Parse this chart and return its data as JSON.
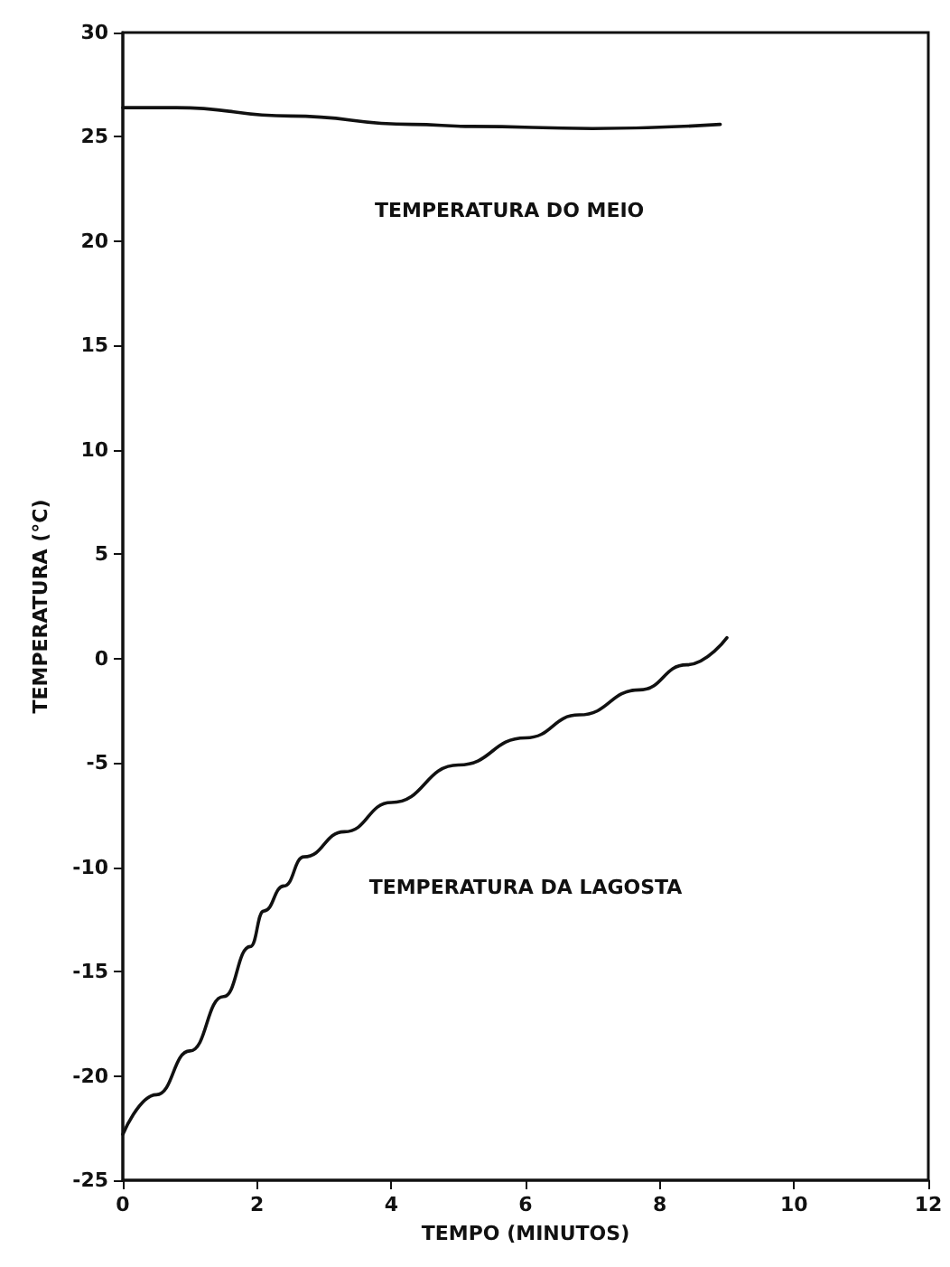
{
  "chart_data": {
    "type": "line",
    "xlabel": "TEMPO (MINUTOS)",
    "ylabel": "TEMPERATURA (°C)",
    "xlim": [
      0,
      12
    ],
    "xticks": [
      0,
      2,
      4,
      6,
      8,
      10,
      12
    ],
    "ylim": [
      -25,
      30
    ],
    "yticks": [
      -25,
      -20,
      -15,
      -10,
      -5,
      0,
      5,
      10,
      15,
      20,
      25,
      30
    ],
    "grid": false,
    "marker": "none",
    "line_style": "solid",
    "series": [
      {
        "color": "#111111",
        "x": [
          0,
          0.8,
          2.5,
          4.3,
          5.2,
          7,
          8.9
        ],
        "values": [
          26.4,
          26.4,
          26.0,
          25.6,
          25.5,
          25.4,
          25.6
        ]
      },
      {
        "color": "#111111",
        "x": [
          0,
          0.5,
          1,
          1.5,
          1.9,
          2.1,
          2.4,
          2.7,
          3.3,
          4,
          5,
          6,
          6.8,
          7.7,
          8.4,
          9
        ],
        "values": [
          -22.8,
          -20.9,
          -18.8,
          -16.2,
          -13.8,
          -12.1,
          -10.9,
          -9.5,
          -8.3,
          -6.9,
          -5.1,
          -3.8,
          -2.7,
          -1.5,
          -0.3,
          1
        ]
      }
    ],
    "annotations": [
      "TEMPERATURA DO MEIO",
      "TEMPERATURA DA LAGOSTA"
    ]
  }
}
